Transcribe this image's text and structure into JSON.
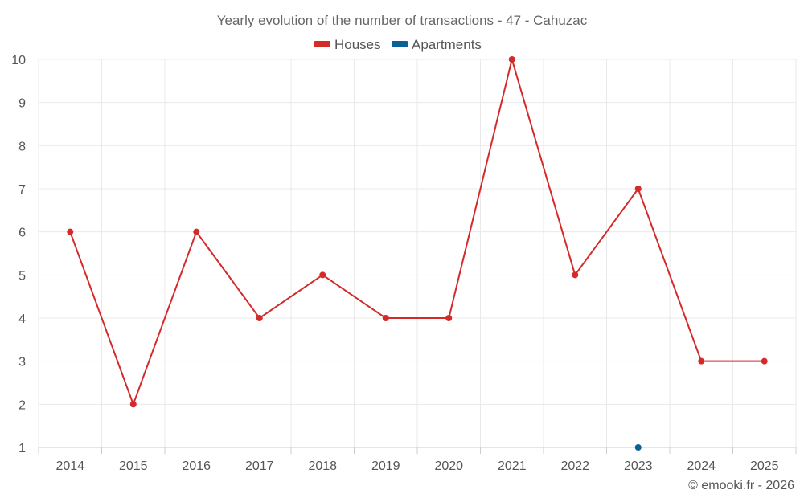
{
  "chart_data": {
    "type": "line",
    "title": "Yearly evolution of the number of transactions - 47 - Cahuzac",
    "categories": [
      "2014",
      "2015",
      "2016",
      "2017",
      "2018",
      "2019",
      "2020",
      "2021",
      "2022",
      "2023",
      "2024",
      "2025"
    ],
    "series": [
      {
        "name": "Houses",
        "color": "#d42a2a",
        "values": [
          6,
          2,
          6,
          4,
          5,
          4,
          4,
          10,
          5,
          7,
          3,
          3
        ]
      },
      {
        "name": "Apartments",
        "color": "#0b6196",
        "values": [
          null,
          null,
          null,
          null,
          null,
          null,
          null,
          null,
          null,
          1,
          null,
          null
        ]
      }
    ],
    "ylim": [
      1,
      10
    ],
    "yticks": [
      1,
      2,
      3,
      4,
      5,
      6,
      7,
      8,
      9,
      10
    ],
    "xlabel": "",
    "ylabel": "",
    "grid": true,
    "legend": "top-center"
  },
  "credit": "© emooki.fr - 2026"
}
